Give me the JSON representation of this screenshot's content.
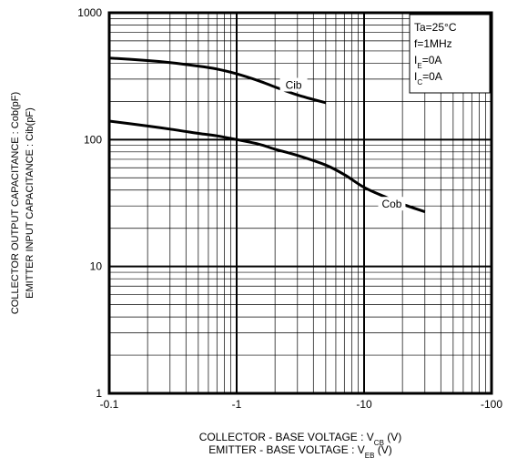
{
  "chart_data": {
    "type": "line",
    "x_scale": "log",
    "y_scale": "log",
    "xlim": [
      -0.1,
      -100
    ],
    "ylim": [
      1,
      1000
    ],
    "x_ticks": [
      -0.1,
      -1,
      -10,
      -100
    ],
    "x_tick_labels": [
      "-0.1",
      "-1",
      "-10",
      "-100"
    ],
    "y_ticks": [
      1,
      10,
      100,
      1000
    ],
    "y_tick_labels": [
      "1",
      "10",
      "100",
      "1000"
    ],
    "xlabel_lines": [
      {
        "text": "COLLECTOR - BASE VOLTAGE  : V",
        "sub": "CB",
        "tail": " (V)"
      },
      {
        "text": "EMITTER - BASE VOLTAGE : V",
        "sub": "EB",
        "tail": " (V)"
      }
    ],
    "ylabel_lines": [
      "COLLECTOR  OUTPUT CAPACITANCE : Cob(pF)",
      "EMITTER INPUT CAPACITANCE  : Cib(pF)"
    ],
    "grid": true,
    "conditions": [
      {
        "text": "Ta=25°C",
        "sub": "",
        "tail": ""
      },
      {
        "text": "f=1MHz",
        "sub": "",
        "tail": ""
      },
      {
        "text": "I",
        "sub": "E",
        "tail": "=0A"
      },
      {
        "text": "I",
        "sub": "C",
        "tail": "=0A"
      }
    ],
    "series": [
      {
        "name": "Cib",
        "x": [
          -0.1,
          -0.2,
          -0.3,
          -0.5,
          -0.7,
          -1,
          -1.5,
          -2,
          -3,
          -5
        ],
        "y": [
          440,
          420,
          405,
          380,
          360,
          330,
          290,
          260,
          225,
          195
        ]
      },
      {
        "name": "Cob",
        "x": [
          -0.1,
          -0.2,
          -0.3,
          -0.5,
          -0.7,
          -1,
          -1.5,
          -2,
          -3,
          -5,
          -7,
          -10,
          -15,
          -20,
          -30
        ],
        "y": [
          140,
          128,
          121,
          112,
          107,
          100,
          92,
          84,
          75,
          63,
          53,
          42,
          35,
          31,
          27
        ]
      }
    ]
  }
}
